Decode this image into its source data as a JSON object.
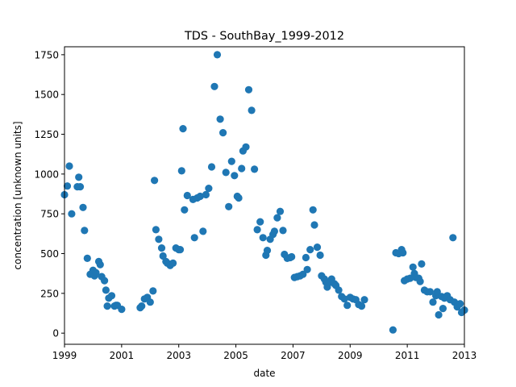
{
  "chart_data": {
    "type": "scatter",
    "title": "TDS - SouthBay_1999-2012",
    "xlabel": "date",
    "ylabel": "concentration [unknown units]",
    "xlim": [
      1999,
      2013
    ],
    "ylim": [
      -70,
      1800
    ],
    "xticks": [
      1999,
      2001,
      2003,
      2005,
      2007,
      2009,
      2011,
      2013
    ],
    "xtick_labels": [
      "1999",
      "2001",
      "2003",
      "2005",
      "2007",
      "2009",
      "2011",
      "2013"
    ],
    "yticks": [
      0,
      250,
      500,
      750,
      1000,
      1250,
      1500,
      1750
    ],
    "ytick_labels": [
      "0",
      "250",
      "500",
      "750",
      "1000",
      "1250",
      "1500",
      "1750"
    ],
    "marker_color": "#1f77b4",
    "series": [
      {
        "name": "TDS",
        "x": [
          1999.0,
          1999.1,
          1999.17,
          1999.25,
          1999.45,
          1999.5,
          1999.55,
          1999.65,
          1999.7,
          1999.8,
          1999.9,
          2000.0,
          2000.05,
          2000.1,
          2000.2,
          2000.25,
          2000.3,
          2000.4,
          2000.45,
          2000.5,
          2000.55,
          2000.65,
          2000.75,
          2000.8,
          2000.85,
          2001.0,
          2001.65,
          2001.7,
          2001.8,
          2001.9,
          2002.0,
          2002.1,
          2002.15,
          2002.2,
          2002.3,
          2002.4,
          2002.45,
          2002.55,
          2002.6,
          2002.7,
          2002.8,
          2002.9,
          2003.0,
          2003.05,
          2003.1,
          2003.15,
          2003.2,
          2003.3,
          2003.5,
          2003.55,
          2003.65,
          2003.75,
          2003.85,
          2003.95,
          2004.05,
          2004.15,
          2004.25,
          2004.35,
          2004.45,
          2004.55,
          2004.65,
          2004.75,
          2004.85,
          2004.95,
          2005.05,
          2005.1,
          2005.2,
          2005.25,
          2005.35,
          2005.45,
          2005.55,
          2005.65,
          2005.75,
          2005.85,
          2005.95,
          2006.05,
          2006.1,
          2006.2,
          2006.3,
          2006.35,
          2006.45,
          2006.55,
          2006.65,
          2006.7,
          2006.8,
          2006.9,
          2006.95,
          2007.05,
          2007.15,
          2007.25,
          2007.35,
          2007.45,
          2007.5,
          2007.6,
          2007.7,
          2007.75,
          2007.85,
          2007.95,
          2008.0,
          2008.1,
          2008.15,
          2008.2,
          2008.3,
          2008.35,
          2008.45,
          2008.5,
          2008.6,
          2008.7,
          2008.8,
          2008.9,
          2009.0,
          2009.1,
          2009.2,
          2009.3,
          2009.4,
          2009.5,
          2010.5,
          2010.6,
          2010.7,
          2010.8,
          2010.85,
          2010.9,
          2011.0,
          2011.1,
          2011.2,
          2011.25,
          2011.3,
          2011.4,
          2011.45,
          2011.5,
          2011.6,
          2011.7,
          2011.8,
          2011.9,
          2012.0,
          2012.05,
          2012.1,
          2012.2,
          2012.25,
          2012.3,
          2012.4,
          2012.5,
          2012.6,
          2012.65,
          2012.75,
          2012.85,
          2012.9,
          2013.0
        ],
        "y": [
          870,
          925,
          1050,
          750,
          920,
          980,
          920,
          790,
          645,
          470,
          370,
          395,
          360,
          380,
          450,
          430,
          355,
          330,
          270,
          170,
          220,
          235,
          170,
          175,
          175,
          150,
          160,
          170,
          215,
          225,
          195,
          265,
          960,
          650,
          590,
          535,
          485,
          450,
          440,
          425,
          440,
          535,
          525,
          525,
          1020,
          1285,
          775,
          865,
          840,
          600,
          850,
          860,
          640,
          870,
          910,
          1045,
          1550,
          1750,
          1345,
          1260,
          1010,
          795,
          1080,
          990,
          860,
          850,
          1035,
          1145,
          1170,
          1530,
          1400,
          1030,
          650,
          700,
          600,
          490,
          520,
          590,
          620,
          640,
          725,
          765,
          645,
          495,
          470,
          475,
          480,
          350,
          355,
          360,
          370,
          475,
          400,
          525,
          775,
          680,
          540,
          490,
          360,
          340,
          320,
          290,
          320,
          340,
          310,
          300,
          270,
          230,
          215,
          175,
          225,
          215,
          210,
          180,
          170,
          210,
          20,
          505,
          500,
          525,
          505,
          330,
          340,
          345,
          415,
          375,
          350,
          345,
          325,
          435,
          270,
          260,
          260,
          195,
          235,
          260,
          115,
          230,
          155,
          220,
          235,
          210,
          600,
          195,
          165,
          185,
          130,
          145
        ]
      }
    ]
  }
}
